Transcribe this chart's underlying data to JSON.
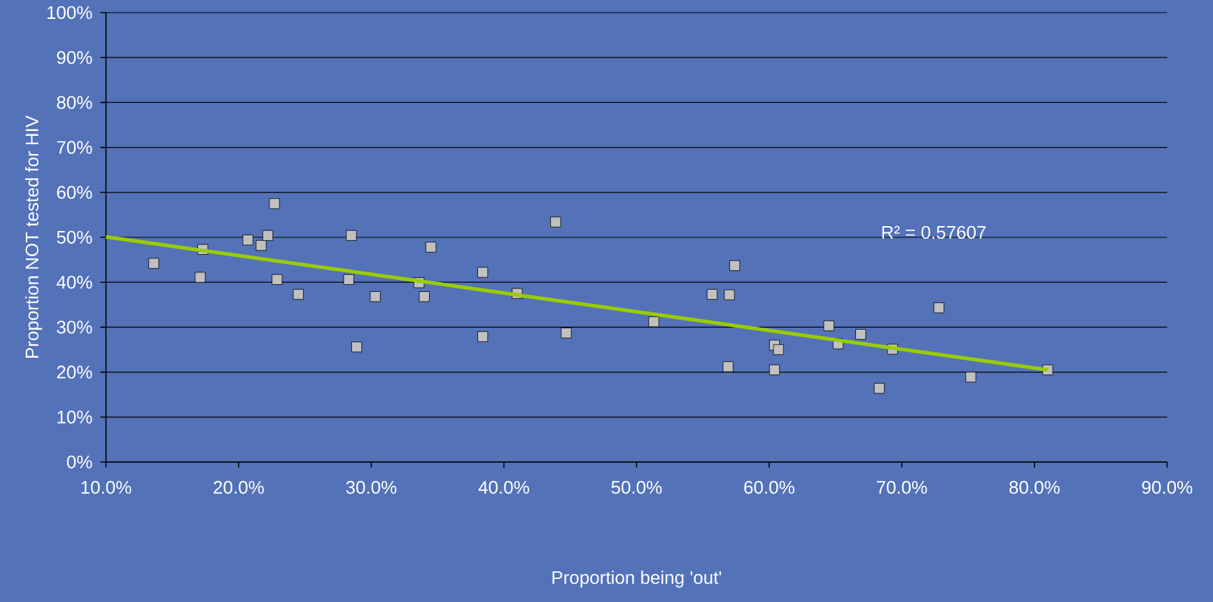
{
  "chart_data": {
    "type": "scatter",
    "xlabel": "Proportion being 'out'",
    "ylabel": "Proportion NOT tested for HIV",
    "xlim": [
      10,
      90
    ],
    "ylim": [
      0,
      100
    ],
    "xticks": [
      {
        "value": 10,
        "label": "10.0%"
      },
      {
        "value": 20,
        "label": "20.0%"
      },
      {
        "value": 30,
        "label": "30.0%"
      },
      {
        "value": 40,
        "label": "40.0%"
      },
      {
        "value": 50,
        "label": "50.0%"
      },
      {
        "value": 60,
        "label": "60.0%"
      },
      {
        "value": 70,
        "label": "70.0%"
      },
      {
        "value": 80,
        "label": "80.0%"
      },
      {
        "value": 90,
        "label": "90.0%"
      }
    ],
    "yticks": [
      {
        "value": 0,
        "label": "0%"
      },
      {
        "value": 10,
        "label": "10%"
      },
      {
        "value": 20,
        "label": "20%"
      },
      {
        "value": 30,
        "label": "30%"
      },
      {
        "value": 40,
        "label": "40%"
      },
      {
        "value": 50,
        "label": "50%"
      },
      {
        "value": 60,
        "label": "60%"
      },
      {
        "value": 70,
        "label": "70%"
      },
      {
        "value": 80,
        "label": "80%"
      },
      {
        "value": 90,
        "label": "90%"
      },
      {
        "value": 100,
        "label": "100%"
      }
    ],
    "grid": "y",
    "series": [
      {
        "marker": "square",
        "color": "#c0c0c0",
        "x": [
          13.6,
          17.1,
          17.3,
          20.7,
          21.7,
          22.2,
          22.7,
          22.9,
          24.5,
          28.3,
          28.5,
          28.9,
          30.3,
          33.6,
          34.0,
          34.5,
          38.4,
          38.4,
          41.0,
          43.9,
          44.7,
          51.3,
          55.7,
          57.0,
          56.9,
          57.4,
          60.4,
          60.4,
          60.7,
          64.5,
          65.2,
          66.9,
          68.3,
          69.3,
          72.8,
          75.2,
          81.0
        ],
        "values": [
          44.2,
          41.1,
          47.3,
          49.4,
          48.2,
          50.4,
          57.5,
          40.6,
          37.3,
          40.6,
          50.4,
          25.6,
          36.8,
          39.9,
          36.8,
          47.8,
          42.2,
          27.9,
          37.5,
          53.4,
          28.7,
          31.2,
          37.3,
          37.2,
          21.2,
          43.7,
          26.0,
          20.5,
          25.0,
          30.3,
          26.3,
          28.4,
          16.4,
          25.1,
          34.3,
          18.9,
          20.5
        ]
      },
      {
        "type": "line",
        "marker": "none",
        "color": "#99cc00",
        "x": [
          10,
          81.0
        ],
        "values": [
          50.1,
          20.5
        ]
      }
    ],
    "annotations": [
      "R² = 0.57607"
    ]
  }
}
